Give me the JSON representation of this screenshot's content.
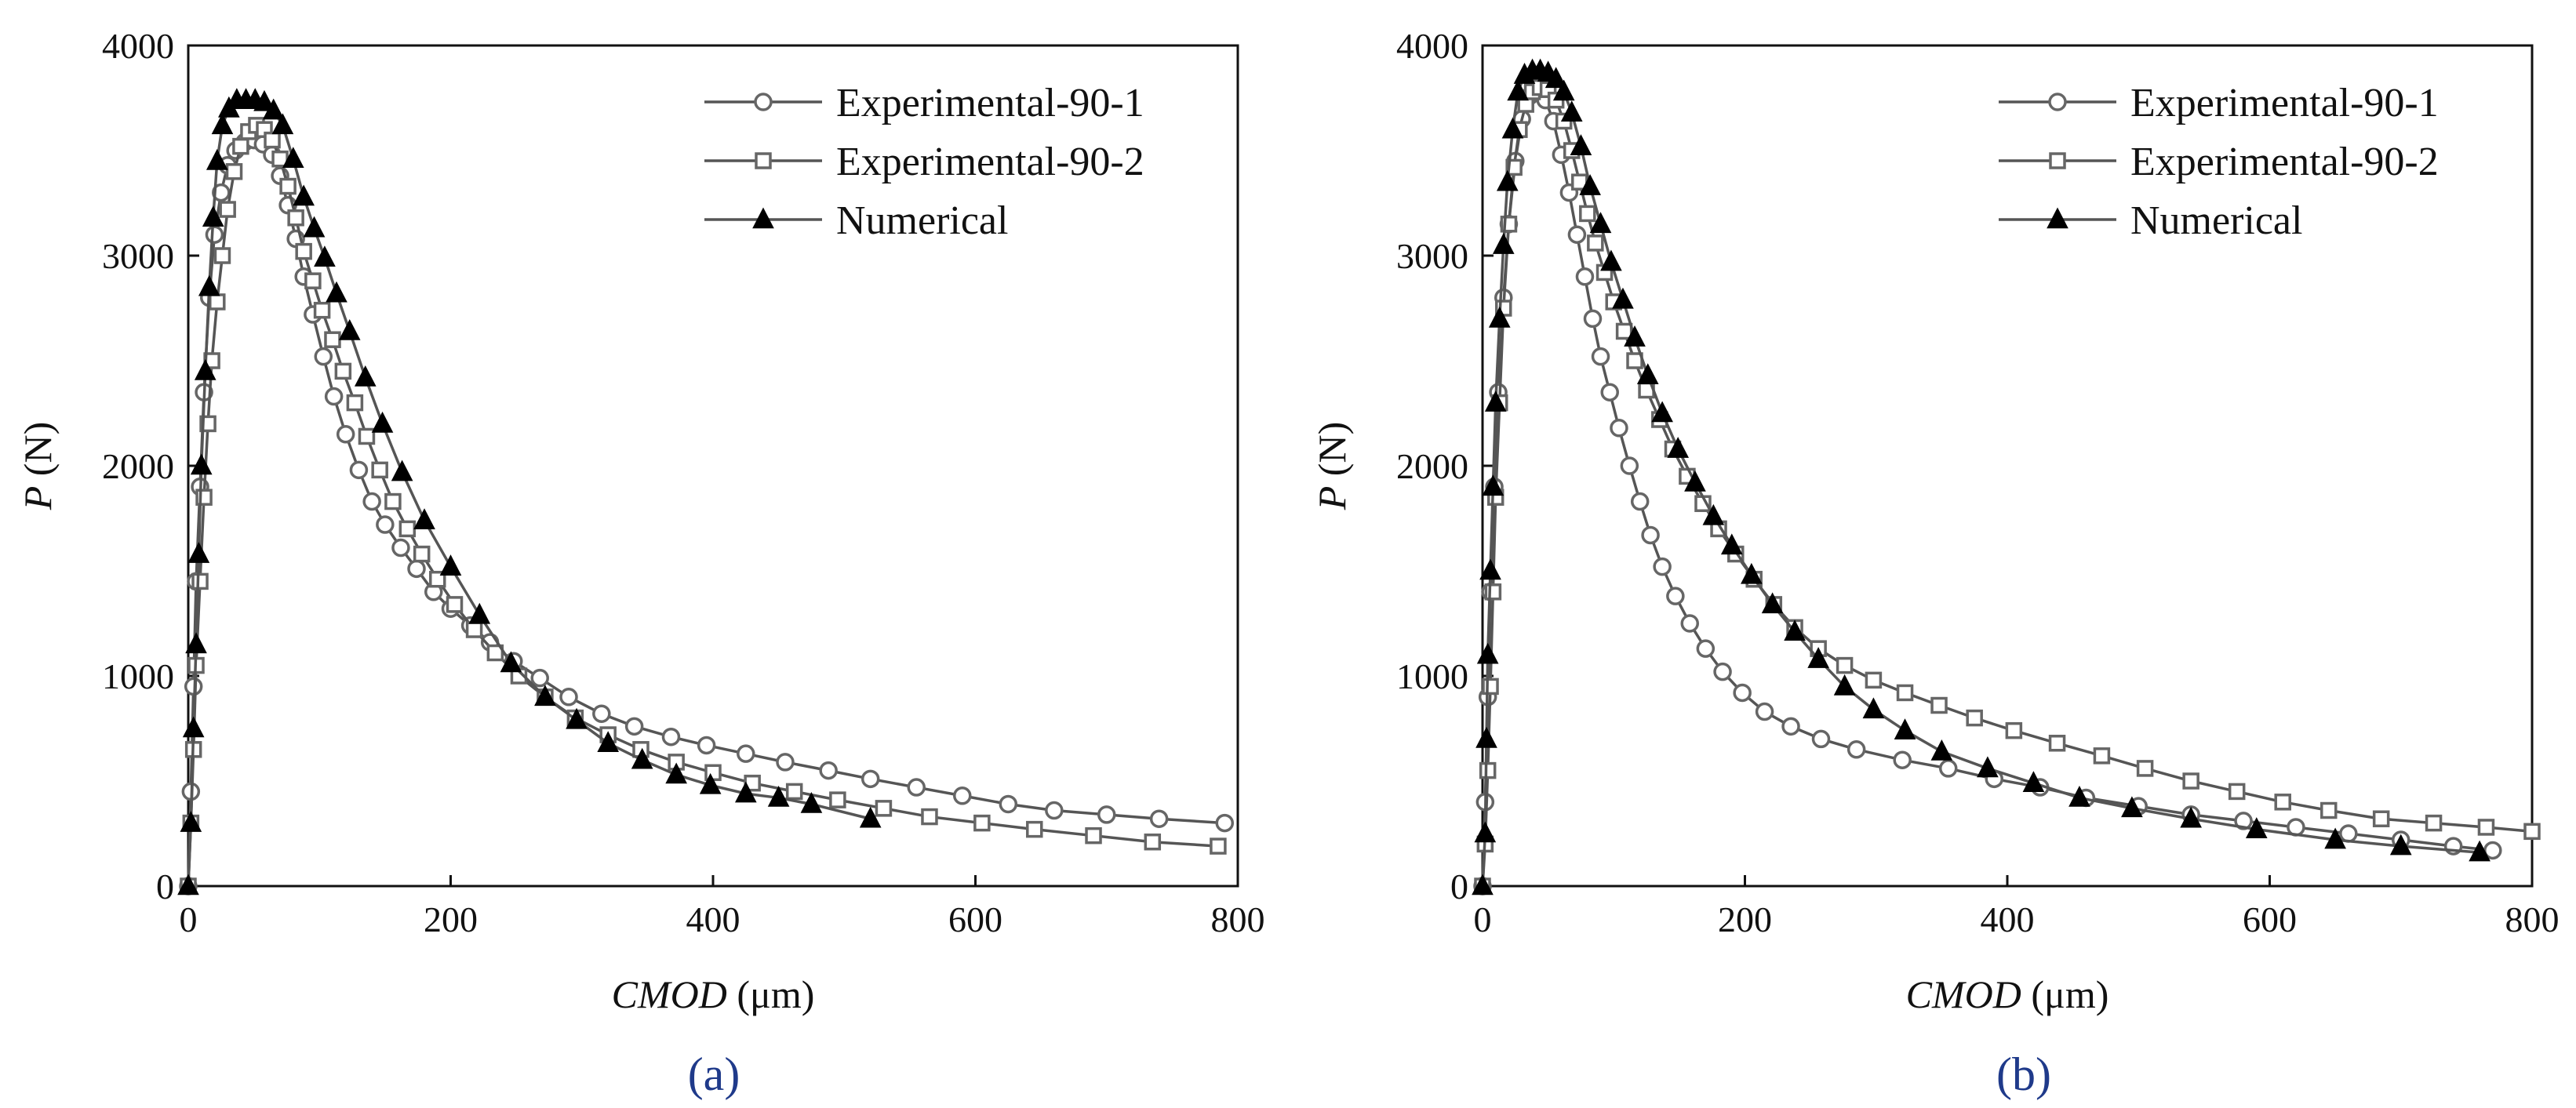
{
  "colors": {
    "line": "#555555",
    "exp1_marker_stroke": "#666666",
    "exp2_marker_stroke": "#666666",
    "numerical_marker": "#000000",
    "axis": "#111111",
    "caption": "#1f3a8a"
  },
  "chart_data": [
    {
      "type": "line",
      "caption": "(a)",
      "xlabel": "CMOD (μm)",
      "xlabel_main": "CMOD",
      "xlabel_unit": " (μm)",
      "ylabel": "P (N)",
      "ylabel_main": "P",
      "ylabel_unit": " (N)",
      "xlim": [
        0,
        800
      ],
      "ylim": [
        0,
        4000
      ],
      "xticks": [
        0,
        200,
        400,
        600,
        800
      ],
      "yticks": [
        0,
        1000,
        2000,
        3000,
        4000
      ],
      "legend_position": "top-right",
      "series": [
        {
          "name": "Experimental-90-1",
          "marker": "circle",
          "x": [
            0,
            2,
            4,
            6,
            9,
            12,
            16,
            20,
            25,
            30,
            36,
            43,
            50,
            57,
            64,
            70,
            76,
            82,
            88,
            95,
            103,
            111,
            120,
            130,
            140,
            150,
            162,
            174,
            187,
            200,
            215,
            230,
            248,
            268,
            290,
            315,
            340,
            368,
            395,
            425,
            455,
            488,
            520,
            555,
            590,
            625,
            660,
            700,
            740,
            790
          ],
          "y": [
            0,
            450,
            950,
            1450,
            1900,
            2350,
            2800,
            3100,
            3300,
            3430,
            3500,
            3540,
            3550,
            3530,
            3480,
            3380,
            3240,
            3080,
            2900,
            2720,
            2520,
            2330,
            2150,
            1980,
            1830,
            1720,
            1610,
            1510,
            1400,
            1320,
            1240,
            1160,
            1070,
            990,
            900,
            820,
            760,
            710,
            670,
            630,
            590,
            550,
            510,
            470,
            430,
            390,
            360,
            340,
            320,
            300
          ]
        },
        {
          "name": "Experimental-90-2",
          "marker": "square",
          "x": [
            0,
            2,
            4,
            6,
            9,
            12,
            15,
            18,
            22,
            26,
            30,
            35,
            40,
            46,
            52,
            58,
            64,
            70,
            76,
            82,
            88,
            95,
            102,
            110,
            118,
            127,
            136,
            146,
            156,
            167,
            178,
            190,
            203,
            218,
            234,
            252,
            272,
            295,
            320,
            345,
            372,
            400,
            430,
            462,
            495,
            530,
            565,
            605,
            645,
            690,
            735,
            785
          ],
          "y": [
            0,
            300,
            650,
            1050,
            1450,
            1850,
            2200,
            2500,
            2780,
            3000,
            3220,
            3400,
            3520,
            3590,
            3620,
            3600,
            3550,
            3460,
            3330,
            3180,
            3020,
            2880,
            2740,
            2600,
            2450,
            2300,
            2140,
            1980,
            1830,
            1700,
            1580,
            1460,
            1340,
            1220,
            1110,
            1000,
            900,
            800,
            720,
            650,
            590,
            540,
            490,
            450,
            410,
            370,
            330,
            300,
            270,
            240,
            210,
            190
          ]
        },
        {
          "name": "Numerical",
          "marker": "triangle",
          "x": [
            0,
            2,
            4,
            6,
            8,
            10,
            13,
            16,
            19,
            22,
            26,
            31,
            37,
            44,
            51,
            58,
            65,
            72,
            80,
            88,
            96,
            104,
            113,
            123,
            135,
            148,
            163,
            180,
            200,
            222,
            246,
            272,
            296,
            320,
            346,
            372,
            398,
            425,
            450,
            475,
            520
          ],
          "y": [
            0,
            300,
            750,
            1150,
            1580,
            2000,
            2450,
            2850,
            3180,
            3450,
            3620,
            3700,
            3740,
            3740,
            3740,
            3730,
            3690,
            3620,
            3460,
            3280,
            3130,
            2990,
            2820,
            2640,
            2420,
            2200,
            1970,
            1740,
            1520,
            1290,
            1060,
            900,
            790,
            680,
            600,
            530,
            480,
            440,
            420,
            390,
            320
          ]
        }
      ]
    },
    {
      "type": "line",
      "caption": "(b)",
      "xlabel": "CMOD (μm)",
      "xlabel_main": "CMOD",
      "xlabel_unit": " (μm)",
      "ylabel": "P (N)",
      "ylabel_main": "P",
      "ylabel_unit": " (N)",
      "xlim": [
        0,
        800
      ],
      "ylim": [
        0,
        4000
      ],
      "xticks": [
        0,
        200,
        400,
        600,
        800
      ],
      "yticks": [
        0,
        1000,
        2000,
        3000,
        4000
      ],
      "legend_position": "top-right",
      "series": [
        {
          "name": "Experimental-90-1",
          "marker": "circle",
          "x": [
            0,
            2,
            4,
            6,
            9,
            12,
            16,
            20,
            25,
            30,
            36,
            42,
            48,
            54,
            60,
            66,
            72,
            78,
            84,
            90,
            97,
            104,
            112,
            120,
            128,
            137,
            147,
            158,
            170,
            183,
            198,
            215,
            235,
            258,
            285,
            320,
            355,
            390,
            425,
            460,
            500,
            540,
            580,
            620,
            660,
            700,
            740,
            770
          ],
          "y": [
            0,
            400,
            900,
            1400,
            1900,
            2350,
            2800,
            3150,
            3450,
            3650,
            3760,
            3780,
            3740,
            3640,
            3480,
            3300,
            3100,
            2900,
            2700,
            2520,
            2350,
            2180,
            2000,
            1830,
            1670,
            1520,
            1380,
            1250,
            1130,
            1020,
            920,
            830,
            760,
            700,
            650,
            600,
            560,
            510,
            470,
            420,
            380,
            340,
            310,
            280,
            250,
            220,
            190,
            170
          ]
        },
        {
          "name": "Experimental-90-2",
          "marker": "square",
          "x": [
            0,
            2,
            4,
            6,
            8,
            10,
            13,
            16,
            20,
            24,
            28,
            33,
            38,
            44,
            50,
            56,
            62,
            68,
            74,
            80,
            86,
            93,
            100,
            108,
            116,
            125,
            135,
            145,
            156,
            168,
            180,
            193,
            207,
            222,
            238,
            256,
            276,
            298,
            322,
            348,
            375,
            405,
            438,
            472,
            505,
            540,
            575,
            610,
            645,
            685,
            725,
            765,
            800
          ],
          "y": [
            0,
            200,
            550,
            950,
            1400,
            1850,
            2300,
            2750,
            3150,
            3420,
            3600,
            3720,
            3780,
            3800,
            3790,
            3740,
            3640,
            3500,
            3350,
            3200,
            3060,
            2920,
            2780,
            2640,
            2500,
            2360,
            2220,
            2080,
            1950,
            1820,
            1700,
            1580,
            1460,
            1340,
            1230,
            1130,
            1050,
            980,
            920,
            860,
            800,
            740,
            680,
            620,
            560,
            500,
            450,
            400,
            360,
            320,
            300,
            280,
            260
          ]
        },
        {
          "name": "Numerical",
          "marker": "triangle",
          "x": [
            0,
            2,
            3,
            4,
            6,
            8,
            10,
            13,
            16,
            19,
            23,
            27,
            32,
            38,
            44,
            50,
            56,
            62,
            68,
            75,
            82,
            90,
            98,
            107,
            116,
            126,
            137,
            149,
            162,
            176,
            190,
            205,
            221,
            238,
            256,
            276,
            298,
            322,
            350,
            385,
            420,
            455,
            495,
            540,
            590,
            650,
            700,
            760
          ],
          "y": [
            0,
            250,
            700,
            1100,
            1500,
            1900,
            2300,
            2700,
            3050,
            3350,
            3600,
            3780,
            3860,
            3880,
            3880,
            3870,
            3840,
            3780,
            3680,
            3520,
            3330,
            3150,
            2970,
            2790,
            2610,
            2430,
            2250,
            2080,
            1920,
            1760,
            1620,
            1480,
            1340,
            1210,
            1080,
            950,
            840,
            740,
            640,
            560,
            490,
            420,
            370,
            320,
            270,
            220,
            190,
            160
          ]
        }
      ]
    }
  ]
}
